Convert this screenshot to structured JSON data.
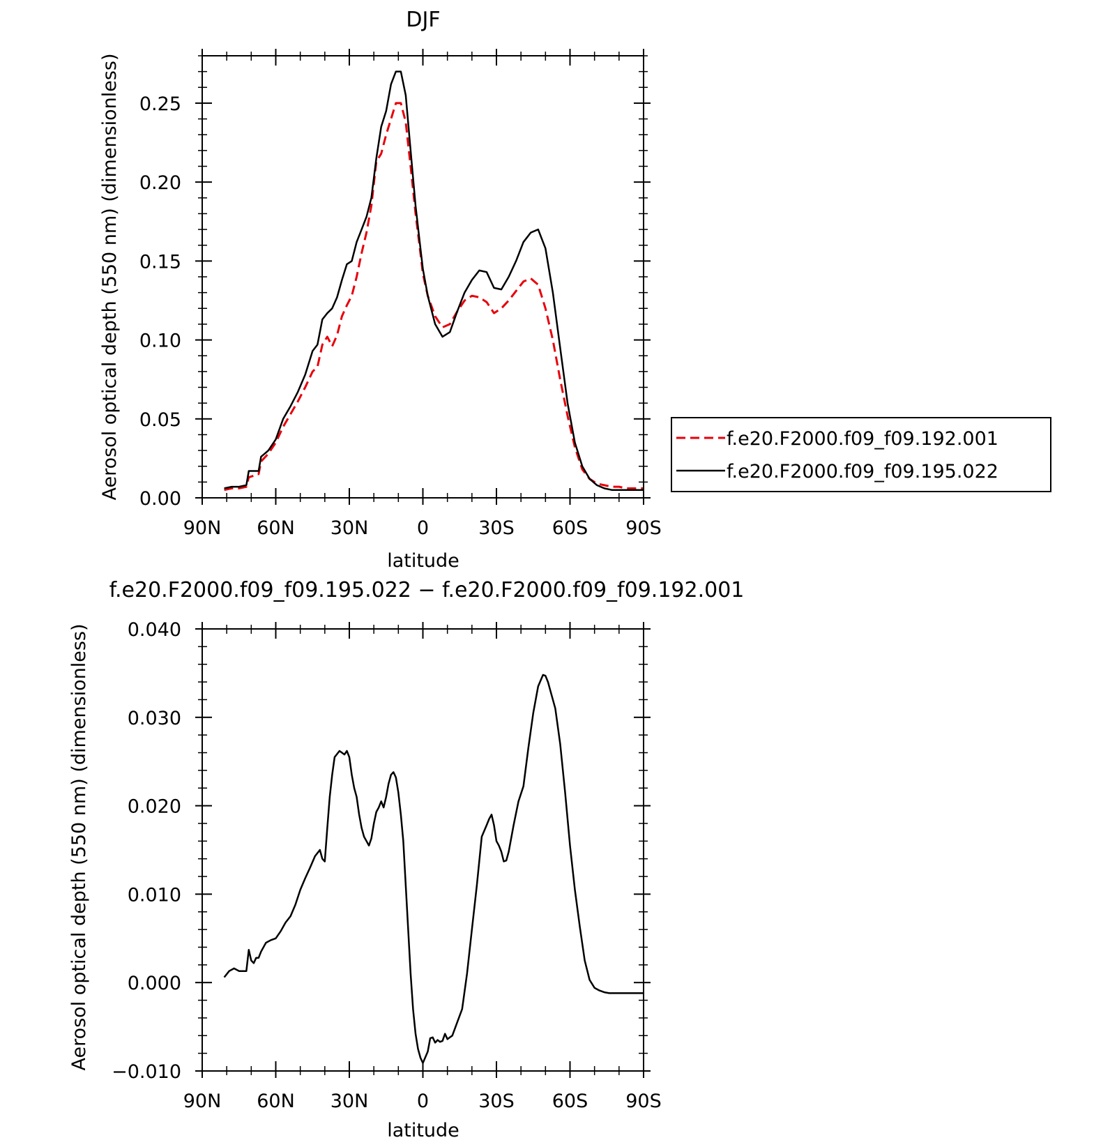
{
  "chart_data": [
    {
      "type": "line",
      "title": "DJF",
      "xlabel": "latitude",
      "ylabel": "Aerosol optical depth (550 nm) (dimensionless)",
      "xlim": [
        -90,
        90
      ],
      "ylim": [
        0,
        0.28
      ],
      "x_ticks": [
        -90,
        -60,
        -30,
        0,
        30,
        60,
        90
      ],
      "x_tick_labels": [
        "90N",
        "60N",
        "30N",
        "0",
        "30S",
        "60S",
        "90S"
      ],
      "y_ticks": [
        0,
        0.05,
        0.1,
        0.15,
        0.2,
        0.25
      ],
      "y_tick_labels": [
        "0.00",
        "0.05",
        "0.10",
        "0.15",
        "0.20",
        "0.25"
      ],
      "legend_position": "right",
      "series": [
        {
          "name": "f.e20.F2000.f09_f09.192.001",
          "color": "#e8000b",
          "dash": "dashed",
          "x": [
            -81,
            -78,
            -75,
            -72,
            -71,
            -69,
            -68,
            -67,
            -66,
            -63,
            -60,
            -57,
            -54,
            -51,
            -48,
            -45,
            -43,
            -41,
            -39,
            -37,
            -35,
            -33,
            -31,
            -29,
            -27,
            -25,
            -23,
            -21,
            -19,
            -17,
            -15,
            -13,
            -11,
            -9,
            -7,
            -5,
            -3,
            -1,
            0,
            2,
            5,
            8,
            11,
            14,
            17,
            20,
            23,
            26,
            29,
            32,
            35,
            38,
            41,
            44,
            47,
            50,
            53,
            56,
            59,
            62,
            65,
            68,
            71,
            74,
            77,
            80,
            83,
            86,
            90
          ],
          "y": [
            0.005,
            0.006,
            0.006,
            0.007,
            0.013,
            0.014,
            0.015,
            0.015,
            0.023,
            0.028,
            0.035,
            0.045,
            0.053,
            0.061,
            0.07,
            0.08,
            0.083,
            0.097,
            0.102,
            0.096,
            0.103,
            0.115,
            0.122,
            0.128,
            0.14,
            0.155,
            0.168,
            0.185,
            0.213,
            0.218,
            0.23,
            0.24,
            0.25,
            0.25,
            0.238,
            0.21,
            0.18,
            0.155,
            0.142,
            0.128,
            0.115,
            0.108,
            0.11,
            0.118,
            0.125,
            0.128,
            0.127,
            0.124,
            0.117,
            0.12,
            0.125,
            0.131,
            0.137,
            0.139,
            0.135,
            0.12,
            0.1,
            0.075,
            0.052,
            0.032,
            0.018,
            0.012,
            0.009,
            0.008,
            0.007,
            0.007,
            0.006,
            0.006,
            0.006
          ]
        },
        {
          "name": "f.e20.F2000.f09_f09.195.022",
          "color": "#000000",
          "dash": "solid",
          "x": [
            -81,
            -78,
            -75,
            -72,
            -71,
            -69,
            -68,
            -67,
            -66,
            -63,
            -60,
            -57,
            -54,
            -51,
            -48,
            -45,
            -43,
            -41,
            -39,
            -37,
            -35,
            -33,
            -31,
            -29,
            -27,
            -25,
            -23,
            -21,
            -19,
            -17,
            -15,
            -13,
            -11,
            -9,
            -7,
            -5,
            -3,
            -1,
            0,
            2,
            5,
            8,
            11,
            14,
            17,
            20,
            23,
            26,
            29,
            32,
            35,
            38,
            41,
            44,
            47,
            50,
            53,
            56,
            59,
            62,
            65,
            68,
            71,
            74,
            77,
            80,
            83,
            86,
            90
          ],
          "y": [
            0.006,
            0.007,
            0.007,
            0.008,
            0.017,
            0.017,
            0.017,
            0.017,
            0.026,
            0.03,
            0.037,
            0.05,
            0.058,
            0.067,
            0.078,
            0.093,
            0.097,
            0.113,
            0.117,
            0.12,
            0.127,
            0.138,
            0.148,
            0.15,
            0.162,
            0.17,
            0.178,
            0.19,
            0.215,
            0.235,
            0.245,
            0.262,
            0.27,
            0.27,
            0.255,
            0.22,
            0.185,
            0.158,
            0.145,
            0.128,
            0.11,
            0.102,
            0.105,
            0.118,
            0.13,
            0.138,
            0.144,
            0.143,
            0.133,
            0.132,
            0.14,
            0.15,
            0.162,
            0.168,
            0.17,
            0.158,
            0.13,
            0.095,
            0.06,
            0.035,
            0.02,
            0.012,
            0.008,
            0.006,
            0.005,
            0.005,
            0.005,
            0.005,
            0.005
          ]
        }
      ]
    },
    {
      "type": "line",
      "title": "f.e20.F2000.f09_f09.195.022 − f.e20.F2000.f09_f09.192.001",
      "xlabel": "latitude",
      "ylabel": "Aerosol optical depth (550 nm) (dimensionless)",
      "xlim": [
        -90,
        90
      ],
      "ylim": [
        -0.01,
        0.04
      ],
      "x_ticks": [
        -90,
        -60,
        -30,
        0,
        30,
        60,
        90
      ],
      "x_tick_labels": [
        "90N",
        "60N",
        "30N",
        "0",
        "30S",
        "60S",
        "90S"
      ],
      "y_ticks": [
        -0.01,
        0,
        0.01,
        0.02,
        0.03,
        0.04
      ],
      "y_tick_labels": [
        "−0.010",
        "0.000",
        "0.010",
        "0.020",
        "0.030",
        "0.040"
      ],
      "series": [
        {
          "color": "#000000",
          "dash": "solid",
          "x": [
            -81,
            -79,
            -77,
            -75,
            -72,
            -71,
            -70,
            -69,
            -68,
            -67,
            -66,
            -64,
            -62,
            -60,
            -58,
            -56,
            -54,
            -52,
            -50,
            -48,
            -46,
            -44,
            -42,
            -41,
            -40,
            -39,
            -38,
            -37,
            -36,
            -34,
            -33,
            -32,
            -31,
            -30,
            -29,
            -28,
            -27,
            -26,
            -25,
            -24,
            -23,
            -22,
            -21,
            -20,
            -19,
            -18,
            -17,
            -16,
            -15,
            -14,
            -13,
            -12,
            -11,
            -10,
            -9,
            -8,
            -7,
            -6,
            -5,
            -4,
            -3,
            -2,
            -1,
            0,
            2,
            3,
            4,
            5,
            6,
            7,
            8,
            9,
            10,
            11,
            12,
            14,
            16,
            18,
            20,
            22,
            24,
            26,
            27,
            28,
            29,
            30,
            31,
            32,
            33,
            34,
            35,
            37,
            39,
            41,
            43,
            45,
            47,
            49,
            50,
            51,
            52,
            53,
            54,
            56,
            58,
            60,
            62,
            64,
            66,
            68,
            70,
            72,
            74,
            76,
            78,
            80,
            82,
            84,
            86,
            88,
            90
          ],
          "y": [
            0.0006,
            0.0013,
            0.0016,
            0.0013,
            0.0013,
            0.0037,
            0.0025,
            0.0022,
            0.0028,
            0.0028,
            0.0035,
            0.0045,
            0.0048,
            0.005,
            0.0058,
            0.0068,
            0.0075,
            0.0088,
            0.0105,
            0.0118,
            0.013,
            0.0143,
            0.015,
            0.014,
            0.0137,
            0.0175,
            0.021,
            0.0235,
            0.0255,
            0.0262,
            0.026,
            0.0258,
            0.0262,
            0.0255,
            0.0235,
            0.022,
            0.021,
            0.019,
            0.0175,
            0.0165,
            0.016,
            0.0155,
            0.0163,
            0.018,
            0.0193,
            0.0198,
            0.0205,
            0.0198,
            0.021,
            0.0225,
            0.0235,
            0.0238,
            0.0232,
            0.0215,
            0.019,
            0.016,
            0.011,
            0.006,
            0.001,
            -0.003,
            -0.0058,
            -0.0075,
            -0.0085,
            -0.0091,
            -0.0078,
            -0.0063,
            -0.0062,
            -0.0068,
            -0.0065,
            -0.0067,
            -0.0066,
            -0.0058,
            -0.0064,
            -0.0062,
            -0.006,
            -0.0045,
            -0.003,
            0.001,
            0.006,
            0.011,
            0.0165,
            0.0178,
            0.0185,
            0.019,
            0.0178,
            0.016,
            0.0155,
            0.0148,
            0.0137,
            0.0138,
            0.0148,
            0.0178,
            0.0205,
            0.0222,
            0.0265,
            0.0305,
            0.0335,
            0.0348,
            0.0347,
            0.034,
            0.033,
            0.032,
            0.031,
            0.027,
            0.0215,
            0.0155,
            0.0105,
            0.0063,
            0.0025,
            0.0003,
            -0.0006,
            -0.0009,
            -0.0011,
            -0.0012,
            -0.0012,
            -0.0012,
            -0.0012,
            -0.0012,
            -0.0012,
            -0.0012,
            -0.0012
          ]
        }
      ]
    }
  ]
}
